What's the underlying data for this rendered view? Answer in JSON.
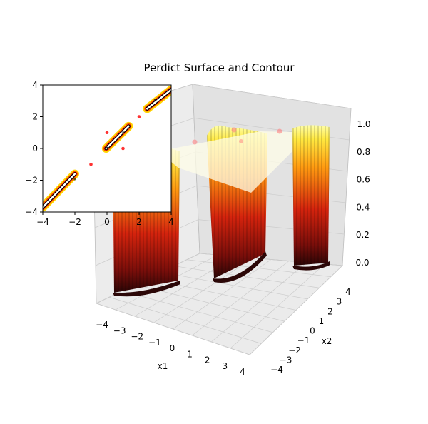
{
  "title": "Perdict Surface and Contour",
  "colors": {
    "peak": "#ffff80",
    "mid": "#ff8c00",
    "low": "#cc1a00",
    "base": "#3a0a0a",
    "pane_x": "#efefef",
    "pane_y": "#e4e4e4",
    "pane_floor": "#e9e9e9",
    "point": "#ff3333",
    "star": "#333333",
    "contour_outer": "#ffd700",
    "contour_mid": "#ff4500",
    "contour_inner": "#000000"
  },
  "chart_data": [
    {
      "type": "surface",
      "title": "Perdict Surface and Contour",
      "xlabel": "x1",
      "ylabel": "x2",
      "zlabel": "",
      "xlim": [
        -4,
        4
      ],
      "ylim": [
        -4,
        4
      ],
      "zlim": [
        0,
        1
      ],
      "xticks": [
        "−4",
        "−3",
        "−2",
        "−1",
        "0",
        "1",
        "2",
        "3",
        "4"
      ],
      "yticks": [
        "−4",
        "−3",
        "−2",
        "−1",
        "0",
        "1",
        "2",
        "3",
        "4"
      ],
      "zticks": [
        "0.0",
        "0.2",
        "0.4",
        "0.6",
        "0.8",
        "1.0"
      ],
      "grid": true,
      "colormap": "hot",
      "ridges": [
        {
          "x1_center": -2,
          "x2_center": -2,
          "height": 1.0
        },
        {
          "x1_center": 0.5,
          "x2_center": 0.5,
          "height": 1.0
        },
        {
          "x1_center": 3,
          "x2_center": 3,
          "height": 1.0
        }
      ],
      "points": [
        {
          "x1": -1,
          "x2": -1,
          "z": 1
        },
        {
          "x1": 0,
          "x2": 1,
          "z": 1
        },
        {
          "x1": 1,
          "x2": 0,
          "z": 1
        },
        {
          "x1": 2,
          "x2": 2,
          "z": 1
        }
      ]
    },
    {
      "type": "contour",
      "xlim": [
        -4,
        4
      ],
      "ylim": [
        -4,
        4
      ],
      "xticks": [
        "−4",
        "−2",
        "0",
        "2",
        "4"
      ],
      "yticks": [
        "−4",
        "−2",
        "0",
        "2",
        "4"
      ],
      "points": [
        {
          "x": -1,
          "y": -1
        },
        {
          "x": 0,
          "y": 1
        },
        {
          "x": 1,
          "y": 0
        },
        {
          "x": 2,
          "y": 2
        }
      ],
      "stars": [
        {
          "x": -2,
          "y": -2
        },
        {
          "x": 0,
          "y": 0
        },
        {
          "x": 1,
          "y": 1
        },
        {
          "x": 3,
          "y": 3
        }
      ],
      "bands": [
        {
          "from": [
            -4,
            -3.7
          ],
          "to": [
            -2,
            -1.6
          ]
        },
        {
          "from": [
            -0.05,
            0.0
          ],
          "to": [
            1.35,
            1.4
          ]
        },
        {
          "from": [
            2.5,
            2.5
          ],
          "to": [
            4,
            3.7
          ]
        }
      ]
    }
  ]
}
